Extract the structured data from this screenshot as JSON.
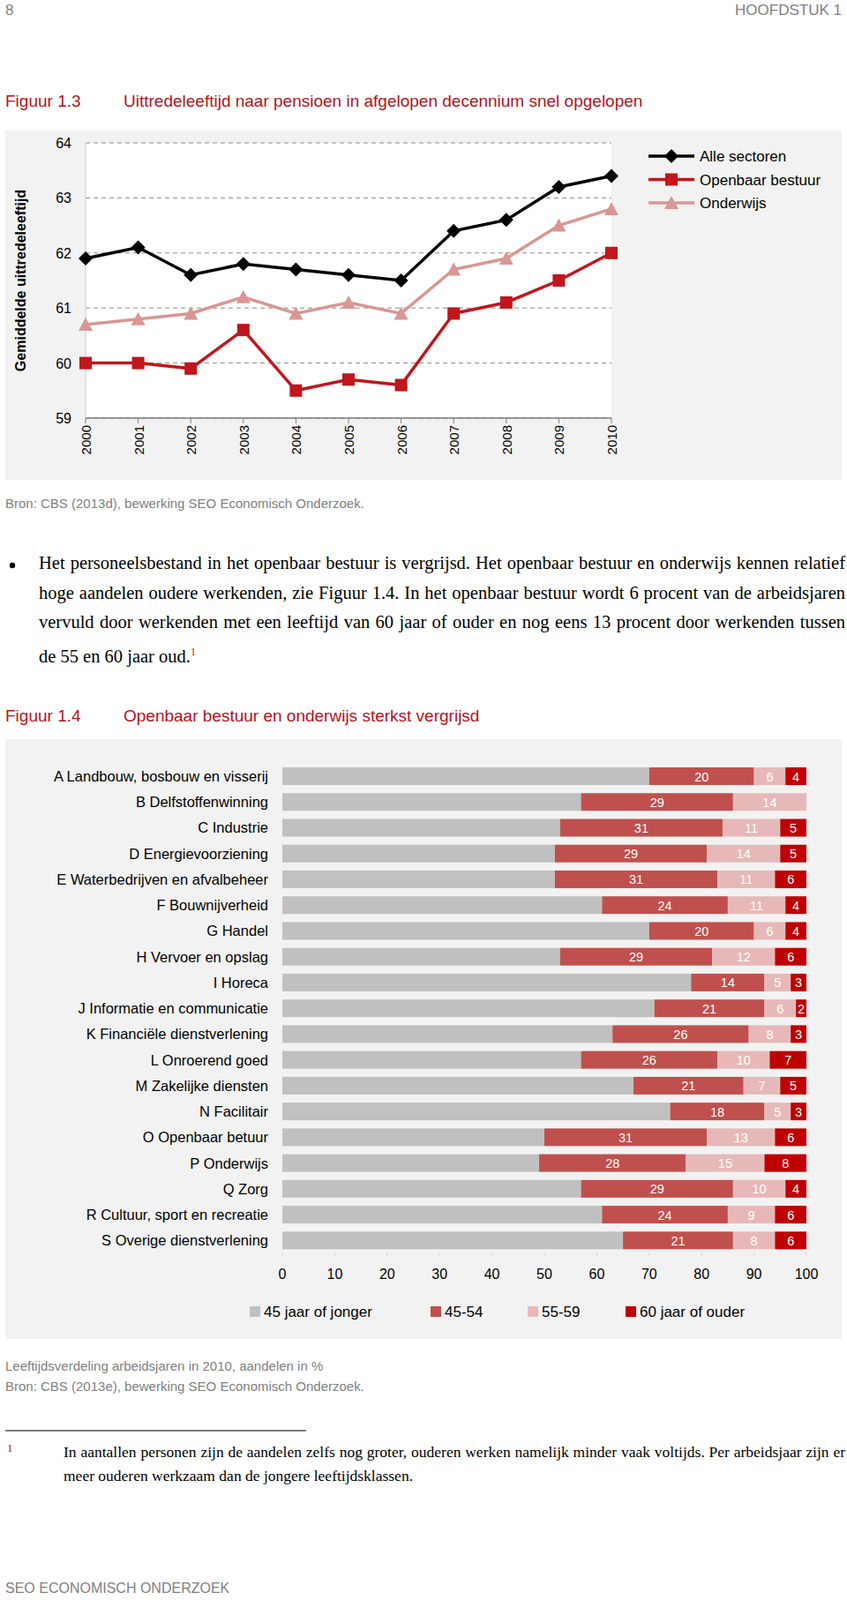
{
  "header": {
    "page_number": "8",
    "chapter": "HOOFDSTUK 1"
  },
  "chart_data": [
    {
      "type": "line",
      "figure_label": "Figuur 1.3",
      "title": "Uittredeleeftijd naar pensioen in afgelopen decennium snel opgelopen",
      "y_label": "Gemiddelde uittredeleeftijd",
      "categories": [
        "2000",
        "2001",
        "2002",
        "2003",
        "2004",
        "2005",
        "2006",
        "2007",
        "2008",
        "2009",
        "2010"
      ],
      "series": [
        {
          "name": "Alle sectoren",
          "color": "#000000",
          "marker": "diamond",
          "values": [
            61.9,
            62.1,
            61.6,
            61.8,
            61.7,
            61.6,
            61.5,
            62.4,
            62.6,
            63.2,
            63.4
          ]
        },
        {
          "name": "Openbaar bestuur",
          "color": "#c0161c",
          "marker": "square",
          "values": [
            60.0,
            60.0,
            59.9,
            60.6,
            59.5,
            59.7,
            59.6,
            60.9,
            61.1,
            61.5,
            62.0
          ]
        },
        {
          "name": "Onderwijs",
          "color": "#d99694",
          "marker": "triangle",
          "values": [
            60.7,
            60.8,
            60.9,
            61.2,
            60.9,
            61.1,
            60.9,
            61.7,
            61.9,
            62.5,
            62.8
          ]
        }
      ],
      "ylim": [
        59,
        64
      ],
      "yticks": [
        59,
        60,
        61,
        62,
        63,
        64
      ],
      "grid": true,
      "legend": "right",
      "source": "Bron: CBS (2013d), bewerking SEO Economisch Onderzoek."
    },
    {
      "type": "bar",
      "orientation": "horizontal",
      "stacked": true,
      "data_labels": true,
      "figure_label": "Figuur 1.4",
      "title": "Openbaar bestuur en onderwijs sterkst vergrijsd",
      "categories": [
        "A Landbouw, bosbouw en visserij",
        "B Delfstoffenwinning",
        "C Industrie",
        "D Energievoorziening",
        "E Waterbedrijven en afvalbeheer",
        "F Bouwnijverheid",
        "G Handel",
        "H Vervoer en opslag",
        "I Horeca",
        "J Informatie en communicatie",
        "K Financiële dienstverlening",
        "L Onroerend goed",
        "M Zakelijke diensten",
        "N Facilitair",
        "O Openbaar betuur",
        "P Onderwijs",
        "Q Zorg",
        "R Cultuur, sport en recreatie",
        "S Overige dienstverlening"
      ],
      "series": [
        {
          "name": "45 jaar of jonger",
          "color": "#c0c0c0",
          "data_labels": false,
          "values": [
            70,
            57,
            53,
            52,
            52,
            61,
            70,
            53,
            78,
            71,
            63,
            57,
            67,
            74,
            50,
            49,
            57,
            61,
            65
          ]
        },
        {
          "name": "45-54",
          "color": "#c0504d",
          "data_labels": true,
          "values": [
            20,
            29,
            31,
            29,
            31,
            24,
            20,
            29,
            14,
            21,
            26,
            26,
            21,
            18,
            31,
            28,
            29,
            24,
            21
          ]
        },
        {
          "name": "55-59",
          "color": "#e6b9b8",
          "data_labels": true,
          "values": [
            6,
            14,
            11,
            14,
            11,
            11,
            6,
            12,
            5,
            6,
            8,
            10,
            7,
            5,
            13,
            15,
            10,
            9,
            8
          ]
        },
        {
          "name": "60 jaar of ouder",
          "color": "#c00000",
          "data_labels": true,
          "values": [
            4,
            null,
            5,
            5,
            6,
            4,
            4,
            6,
            3,
            2,
            3,
            7,
            5,
            3,
            6,
            8,
            4,
            6,
            6
          ]
        }
      ],
      "xlim": [
        0,
        100
      ],
      "xticks": [
        0,
        10,
        20,
        30,
        40,
        50,
        60,
        70,
        80,
        90,
        100
      ],
      "legend": "bottom",
      "caption": "Leeftijdsverdeling arbeidsjaren in 2010, aandelen in %",
      "source": "Bron: CBS (2013e), bewerking SEO Economisch Onderzoek."
    }
  ],
  "body": {
    "bullet_text": "Het personeelsbestand in het openbaar bestuur is vergrijsd. Het openbaar bestuur en onderwijs kennen relatief hoge aandelen oudere werkenden, zie Figuur 1.4. In het openbaar bestuur wordt 6 procent van de arbeidsjaren vervuld door werkenden met een leeftijd van 60 jaar of ouder en nog eens 13 procent door werkenden tussen de 55 en 60 jaar oud.",
    "footnote_marker": "1"
  },
  "footnote": {
    "marker": "1",
    "text": "In aantallen personen zijn de aandelen zelfs nog groter, ouderen werken namelijk minder vaak voltijds. Per arbeidsjaar zijn er meer ouderen werkzaam dan de jongere leeftijdsklassen."
  },
  "footer": "SEO ECONOMISCH ONDERZOEK"
}
